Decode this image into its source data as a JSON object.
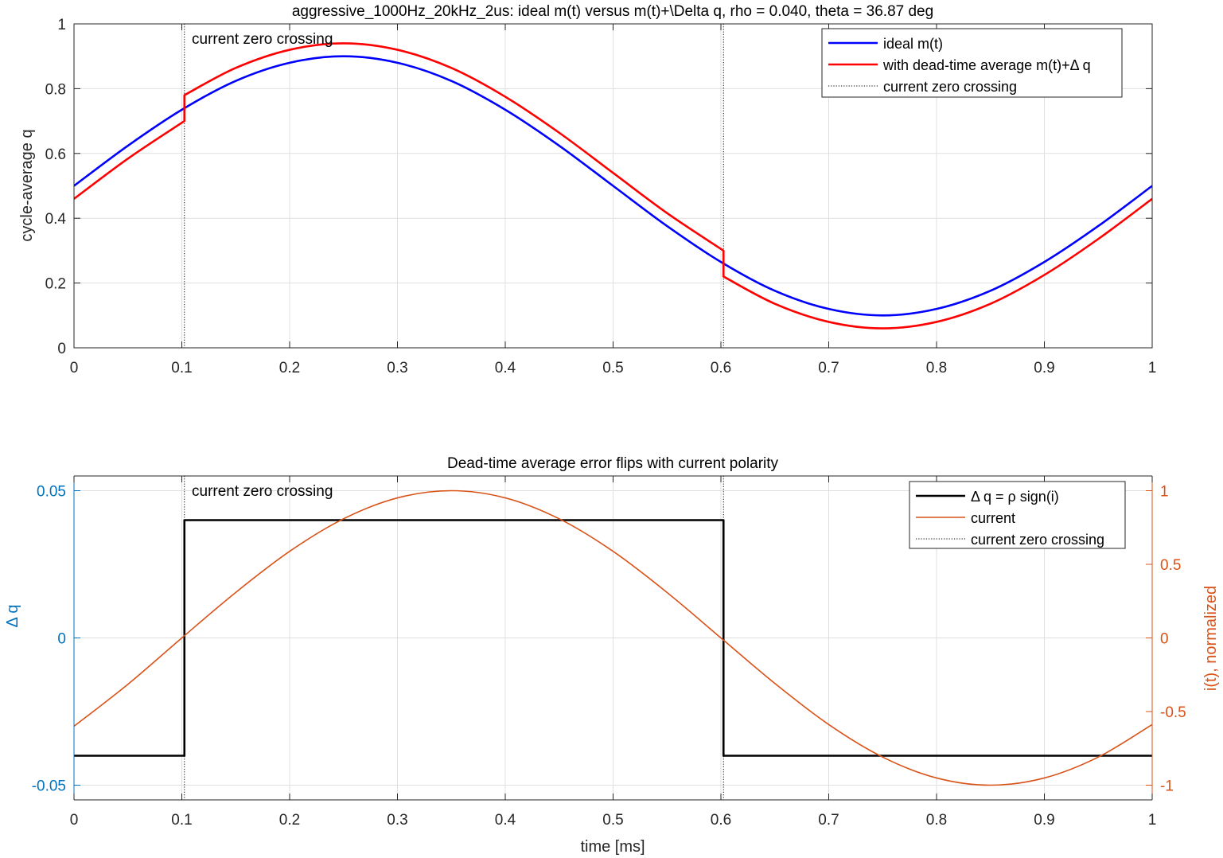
{
  "chart_data": [
    {
      "type": "line",
      "title": "aggressive_1000Hz_20kHz_2us: ideal m(t) versus m(t)+\\Delta q, rho = 0.040, theta = 36.87 deg",
      "xlabel": "",
      "ylabel": "cycle-average q",
      "xlim": [
        0,
        1
      ],
      "ylim": [
        0,
        1
      ],
      "xticks": [
        "0",
        "0.1",
        "0.2",
        "0.3",
        "0.4",
        "0.5",
        "0.6",
        "0.7",
        "0.8",
        "0.9",
        "1"
      ],
      "yticks": [
        "0",
        "0.2",
        "0.4",
        "0.6",
        "0.8",
        "1"
      ],
      "grid": true,
      "legend_position": "top-right",
      "annotation": "current zero crossing",
      "zero_crossings": [
        0.1024,
        0.6024
      ],
      "series": [
        {
          "name": "ideal m(t)",
          "color": "#0000ff",
          "x": [
            0,
            0.05,
            0.1,
            0.15,
            0.2,
            0.25,
            0.3,
            0.35,
            0.4,
            0.45,
            0.5,
            0.55,
            0.6,
            0.65,
            0.7,
            0.75,
            0.8,
            0.85,
            0.9,
            0.95,
            1
          ],
          "y": [
            0.5,
            0.624,
            0.735,
            0.824,
            0.88,
            0.9,
            0.88,
            0.824,
            0.735,
            0.624,
            0.5,
            0.376,
            0.265,
            0.176,
            0.12,
            0.1,
            0.12,
            0.176,
            0.265,
            0.376,
            0.5
          ]
        },
        {
          "name": "with dead-time average m(t)+Δ q",
          "color": "#ff0000",
          "x": [
            0,
            0.05,
            0.1024,
            0.1024,
            0.15,
            0.2,
            0.25,
            0.3,
            0.35,
            0.4,
            0.45,
            0.5,
            0.55,
            0.6024,
            0.6024,
            0.65,
            0.7,
            0.75,
            0.8,
            0.85,
            0.9,
            0.95,
            1
          ],
          "y": [
            0.46,
            0.584,
            0.7,
            0.78,
            0.864,
            0.92,
            0.94,
            0.92,
            0.864,
            0.775,
            0.664,
            0.54,
            0.416,
            0.3,
            0.22,
            0.136,
            0.08,
            0.06,
            0.08,
            0.136,
            0.225,
            0.336,
            0.46
          ]
        },
        {
          "name": "current zero crossing",
          "color": "#000000",
          "style": "dotted"
        }
      ]
    },
    {
      "type": "line",
      "title": "Dead-time average error flips with current polarity",
      "xlabel": "time [ms]",
      "ylabel": "Δ q",
      "ylabel_right": "i(t), normalized",
      "xlim": [
        0,
        1
      ],
      "ylim": [
        -0.055,
        0.055
      ],
      "ylim_right": [
        -1.1,
        1.1
      ],
      "xticks": [
        "0",
        "0.1",
        "0.2",
        "0.3",
        "0.4",
        "0.5",
        "0.6",
        "0.7",
        "0.8",
        "0.9",
        "1"
      ],
      "yticks": [
        "-0.05",
        "0",
        "0.05"
      ],
      "yticks_right": [
        "-1",
        "-0.5",
        "0",
        "0.5",
        "1"
      ],
      "left_axis_color": "#0072bd",
      "right_axis_color": "#d95319",
      "grid": true,
      "legend_position": "top-right",
      "annotation": "current zero crossing",
      "zero_crossings": [
        0.1024,
        0.6024
      ],
      "series": [
        {
          "name": "Δ q = ρ sign(i)",
          "color": "#000000",
          "axis": "left",
          "x": [
            0,
            0.1024,
            0.1024,
            0.6024,
            0.6024,
            1
          ],
          "y": [
            -0.04,
            -0.04,
            0.04,
            0.04,
            -0.04,
            -0.04
          ]
        },
        {
          "name": "current",
          "color": "#d95319",
          "axis": "right",
          "x": [
            0,
            0.05,
            0.1,
            0.15,
            0.2,
            0.25,
            0.3,
            0.35,
            0.4,
            0.45,
            0.5,
            0.55,
            0.6,
            0.65,
            0.7,
            0.75,
            0.8,
            0.85,
            0.9,
            0.95,
            1
          ],
          "y": [
            -0.6,
            -0.315,
            -0.0,
            0.309,
            0.588,
            0.809,
            0.951,
            1.0,
            0.951,
            0.809,
            0.588,
            0.309,
            0.0,
            -0.309,
            -0.588,
            -0.809,
            -0.951,
            -1.0,
            -0.951,
            -0.809,
            -0.588
          ]
        },
        {
          "name": "current zero crossing",
          "color": "#000000",
          "style": "dotted"
        }
      ]
    }
  ]
}
